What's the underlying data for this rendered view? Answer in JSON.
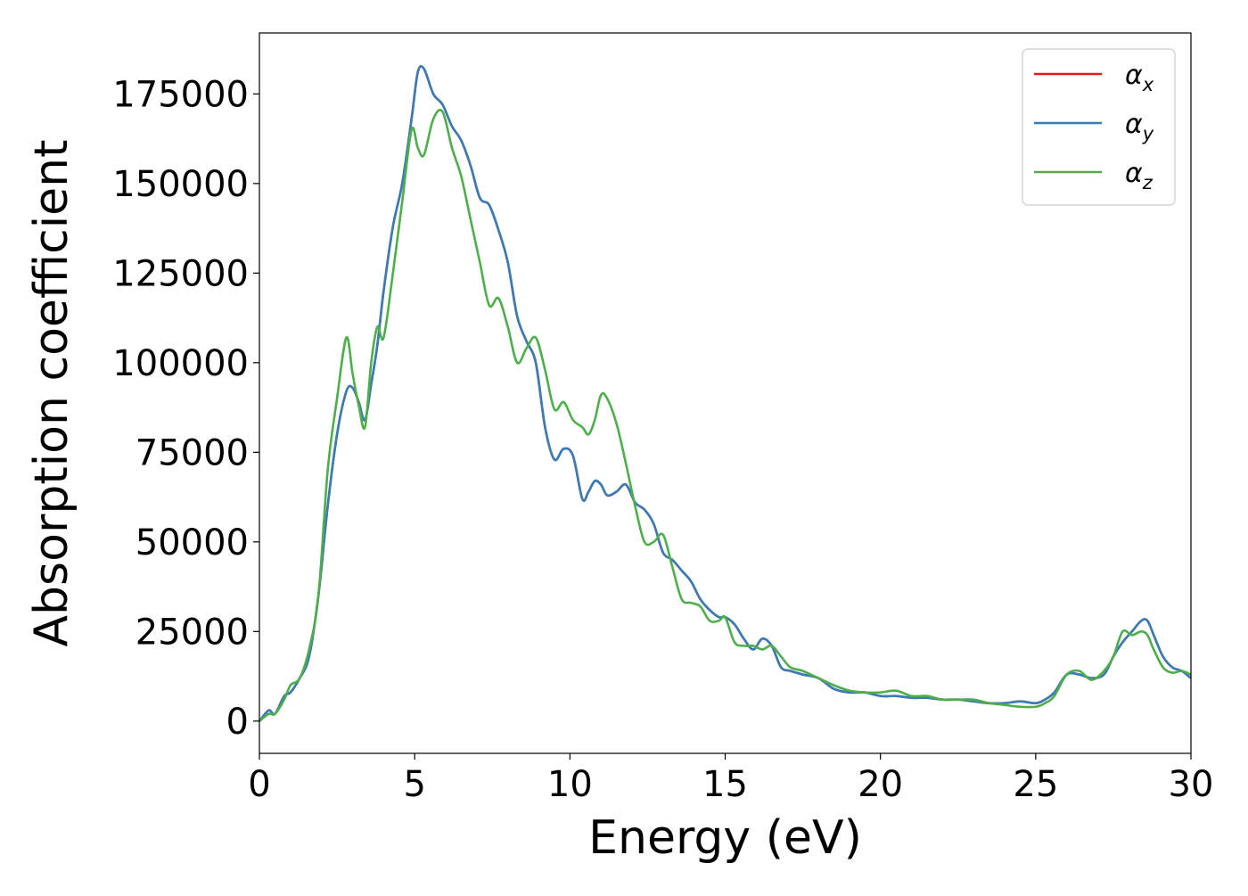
{
  "chart_data": {
    "type": "line",
    "title": "",
    "xlabel": "Energy (eV)",
    "ylabel": "Absorption coefficient",
    "xlim": [
      0,
      30
    ],
    "ylim": [
      -9000,
      192000
    ],
    "xticks": [
      0,
      5,
      10,
      15,
      20,
      25,
      30
    ],
    "xtick_labels": [
      "0",
      "5",
      "10",
      "15",
      "20",
      "25",
      "30"
    ],
    "yticks": [
      0,
      25000,
      50000,
      75000,
      100000,
      125000,
      150000,
      175000
    ],
    "ytick_labels": [
      "0",
      "25000",
      "50000",
      "75000",
      "100000",
      "125000",
      "150000",
      "175000"
    ],
    "grid": false,
    "legend_position": "top-right",
    "legend": [
      {
        "base": "α",
        "sub": "x",
        "color": "#e41a1c"
      },
      {
        "base": "α",
        "sub": "y",
        "color": "#377eb8"
      },
      {
        "base": "α",
        "sub": "z",
        "color": "#4daf4a"
      }
    ],
    "x": [
      0,
      0.3,
      0.5,
      0.8,
      1.0,
      1.3,
      1.6,
      1.9,
      2.2,
      2.5,
      2.8,
      3.0,
      3.2,
      3.4,
      3.6,
      3.8,
      4.0,
      4.3,
      4.6,
      4.9,
      5.1,
      5.3,
      5.6,
      5.9,
      6.2,
      6.5,
      6.8,
      7.1,
      7.4,
      7.7,
      8.0,
      8.3,
      8.6,
      8.9,
      9.2,
      9.5,
      9.8,
      10.1,
      10.4,
      10.6,
      10.8,
      11.0,
      11.2,
      11.5,
      11.8,
      12.1,
      12.4,
      12.7,
      13.0,
      13.3,
      13.6,
      13.9,
      14.2,
      14.5,
      14.8,
      15.0,
      15.3,
      15.6,
      15.9,
      16.2,
      16.5,
      16.8,
      17.1,
      17.5,
      18.0,
      18.5,
      19.0,
      19.5,
      20.0,
      20.5,
      21.0,
      21.5,
      22.0,
      22.5,
      23.0,
      23.5,
      24.0,
      24.5,
      25.0,
      25.3,
      25.6,
      26.0,
      26.4,
      26.8,
      27.2,
      27.5,
      27.8,
      28.1,
      28.4,
      28.6,
      28.8,
      29.1,
      29.4,
      29.7,
      30.0
    ],
    "series": [
      {
        "name": "α_x",
        "color": "#e41a1c",
        "values": [
          0,
          3000,
          2000,
          7000,
          8000,
          12000,
          18000,
          35000,
          60000,
          80000,
          92000,
          93000,
          89000,
          84000,
          94000,
          105000,
          120000,
          138000,
          150000,
          168000,
          181000,
          182000,
          175000,
          172000,
          166000,
          162000,
          155000,
          146000,
          144000,
          137000,
          128000,
          113000,
          106000,
          100000,
          82000,
          73000,
          76000,
          74000,
          62000,
          64000,
          67000,
          66000,
          63000,
          64000,
          66000,
          61000,
          59000,
          55000,
          47000,
          45000,
          42000,
          39000,
          34000,
          31000,
          29000,
          29000,
          27000,
          23000,
          20000,
          23000,
          21000,
          15000,
          14000,
          13000,
          12000,
          9000,
          8000,
          8000,
          7000,
          7000,
          6500,
          6500,
          6000,
          6000,
          5500,
          5000,
          5000,
          5500,
          5000,
          6000,
          8000,
          13000,
          13000,
          12000,
          13000,
          18000,
          22000,
          25000,
          28000,
          28000,
          24000,
          18000,
          15000,
          14000,
          12000
        ]
      },
      {
        "name": "α_y",
        "color": "#377eb8",
        "values": [
          0,
          3000,
          2000,
          7000,
          8000,
          12000,
          18000,
          35000,
          60000,
          80000,
          92000,
          93000,
          89000,
          84000,
          94000,
          105000,
          120000,
          138000,
          150000,
          168000,
          181000,
          182000,
          175000,
          172000,
          166000,
          162000,
          155000,
          146000,
          144000,
          137000,
          128000,
          113000,
          106000,
          100000,
          82000,
          73000,
          76000,
          74000,
          62000,
          64000,
          67000,
          66000,
          63000,
          64000,
          66000,
          61000,
          59000,
          55000,
          47000,
          45000,
          42000,
          39000,
          34000,
          31000,
          29000,
          29000,
          27000,
          23000,
          20000,
          23000,
          21000,
          15000,
          14000,
          13000,
          12000,
          9000,
          8000,
          8000,
          7000,
          7000,
          6500,
          6500,
          6000,
          6000,
          5500,
          5000,
          5000,
          5500,
          5000,
          6000,
          8000,
          13000,
          13000,
          12000,
          13000,
          18000,
          22000,
          25000,
          28000,
          28000,
          24000,
          18000,
          15000,
          14000,
          12000
        ]
      },
      {
        "name": "α_z",
        "color": "#4daf4a",
        "values": [
          0,
          2000,
          2000,
          6000,
          10000,
          12000,
          20000,
          35000,
          70000,
          90000,
          107000,
          97000,
          88000,
          82000,
          100000,
          110000,
          107000,
          125000,
          145000,
          165000,
          160000,
          158000,
          168000,
          170000,
          160000,
          152000,
          140000,
          128000,
          116000,
          118000,
          110000,
          100000,
          104000,
          107000,
          98000,
          87000,
          89000,
          84000,
          82000,
          80000,
          84000,
          91000,
          90000,
          83000,
          72000,
          60000,
          50000,
          50000,
          52000,
          43000,
          34000,
          33000,
          32000,
          28000,
          28000,
          29000,
          22000,
          21000,
          21000,
          20000,
          21000,
          18000,
          15000,
          14000,
          12000,
          10000,
          8500,
          8000,
          8000,
          8500,
          7000,
          7000,
          6000,
          6000,
          6000,
          5000,
          4500,
          4000,
          4000,
          5000,
          7000,
          13000,
          14000,
          11500,
          14000,
          18000,
          25000,
          24000,
          25000,
          24000,
          20000,
          15000,
          13500,
          14000,
          13000
        ]
      }
    ]
  }
}
